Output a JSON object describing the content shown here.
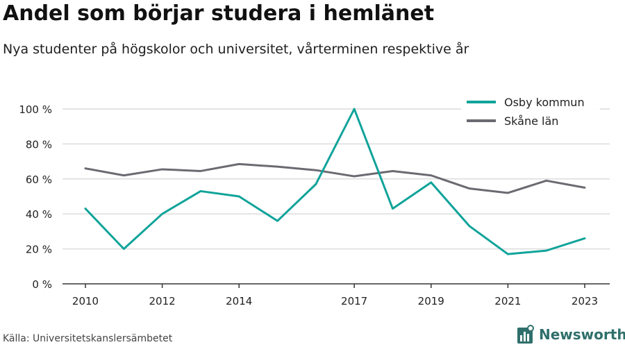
{
  "title": "Andel som börjar studera i hemlänet",
  "subtitle": "Nya studenter på högskolor och universitet, vårterminen respektive år",
  "source": "Källa: Universitetskanslersämbetet",
  "brand": {
    "name": "Newsworthy",
    "icon": "newsworthy-logo-icon"
  },
  "colors": {
    "osby": "#10a39a",
    "skane": "#6b6a72",
    "grid": "#dcdcdc",
    "axis": "#333333"
  },
  "chart_data": {
    "type": "line",
    "x": [
      2010,
      2011,
      2012,
      2013,
      2014,
      2015,
      2016,
      2017,
      2018,
      2019,
      2020,
      2021,
      2022,
      2023
    ],
    "x_tick_labels": [
      "2010",
      "2012",
      "2014",
      "2017",
      "2019",
      "2021",
      "2023"
    ],
    "x_tick_values": [
      2010,
      2012,
      2014,
      2017,
      2019,
      2021,
      2023
    ],
    "y_ticks": [
      0,
      20,
      40,
      60,
      80,
      100
    ],
    "y_tick_labels": [
      "0 %",
      "20 %",
      "40 %",
      "60 %",
      "80 %",
      "100 %"
    ],
    "ylim": [
      0,
      100
    ],
    "xlim": [
      2009.4,
      2023.6
    ],
    "grid": true,
    "legend_position": "top-right",
    "series": [
      {
        "name": "Osby kommun",
        "color": "#10a39a",
        "values": [
          43,
          20,
          40,
          53,
          50,
          36,
          57,
          100,
          43,
          58,
          33,
          17,
          19,
          26
        ]
      },
      {
        "name": "Skåne län",
        "color": "#6b6a72",
        "values": [
          66,
          62,
          65.5,
          64.5,
          68.5,
          67,
          65,
          61.5,
          64.5,
          62,
          54.5,
          52,
          59,
          55
        ]
      }
    ]
  }
}
